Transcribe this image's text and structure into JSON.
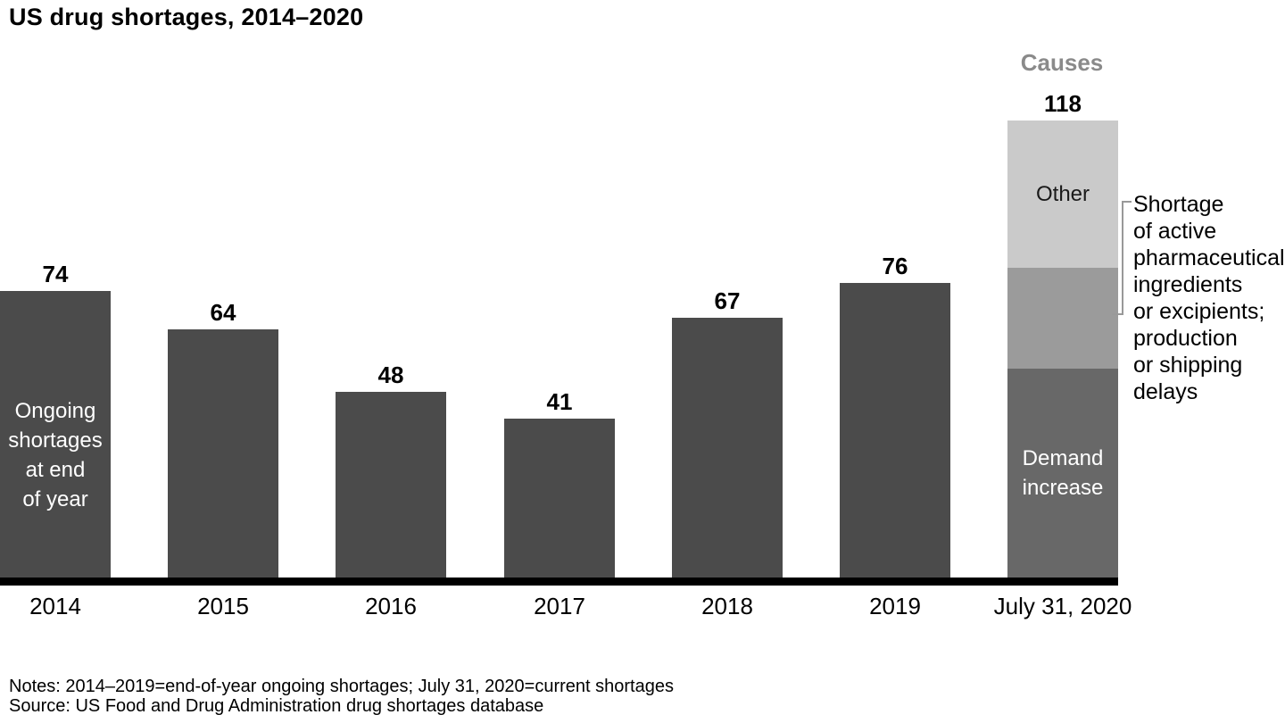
{
  "title": "US drug shortages, 2014–2020",
  "labels": {
    "causes": "Causes",
    "ongoing": "Ongoing\nshortages\nat end\nof year",
    "cause_note": "Shortage\nof active\npharmaceutical\ningredients\nor excipients;\nproduction\nor shipping\ndelays"
  },
  "notes": "Notes: 2014–2019=end-of-year ongoing shortages; July 31, 2020=current shortages",
  "source": "Source: US Food and Drug Administration drug shortages database",
  "chart_data": {
    "type": "bar",
    "title": "US drug shortages, 2014–2020",
    "categories": [
      "2014",
      "2015",
      "2016",
      "2017",
      "2018",
      "2019",
      "July 31, 2020"
    ],
    "values": [
      74,
      64,
      48,
      41,
      67,
      76,
      118
    ],
    "bar_color": "#4b4b4b",
    "axis_color": "#000000",
    "ylim": [
      0,
      125
    ],
    "grid": false,
    "value_labels": true,
    "legend_position": "none",
    "series_label": "Ongoing shortages at end of year",
    "causes_header": "Causes",
    "stacked_category": "July 31, 2020",
    "stacked_total": 118,
    "stacked_segments": [
      {
        "id": "demand-increase",
        "name": "Demand increase",
        "value": 54,
        "color": "#686868",
        "label": "Demand\nincrease",
        "label_color": "#ffffff"
      },
      {
        "id": "api-excipient-shortage",
        "name": "Shortage of active pharmaceutical ingredients or excipients; production or shipping delays",
        "value": 26,
        "color": "#9b9b9b"
      },
      {
        "id": "other",
        "name": "Other",
        "value": 38,
        "color": "#cacaca",
        "label": "Other",
        "label_color": "#1a1a1a"
      }
    ],
    "bracket_color": "#999999"
  }
}
